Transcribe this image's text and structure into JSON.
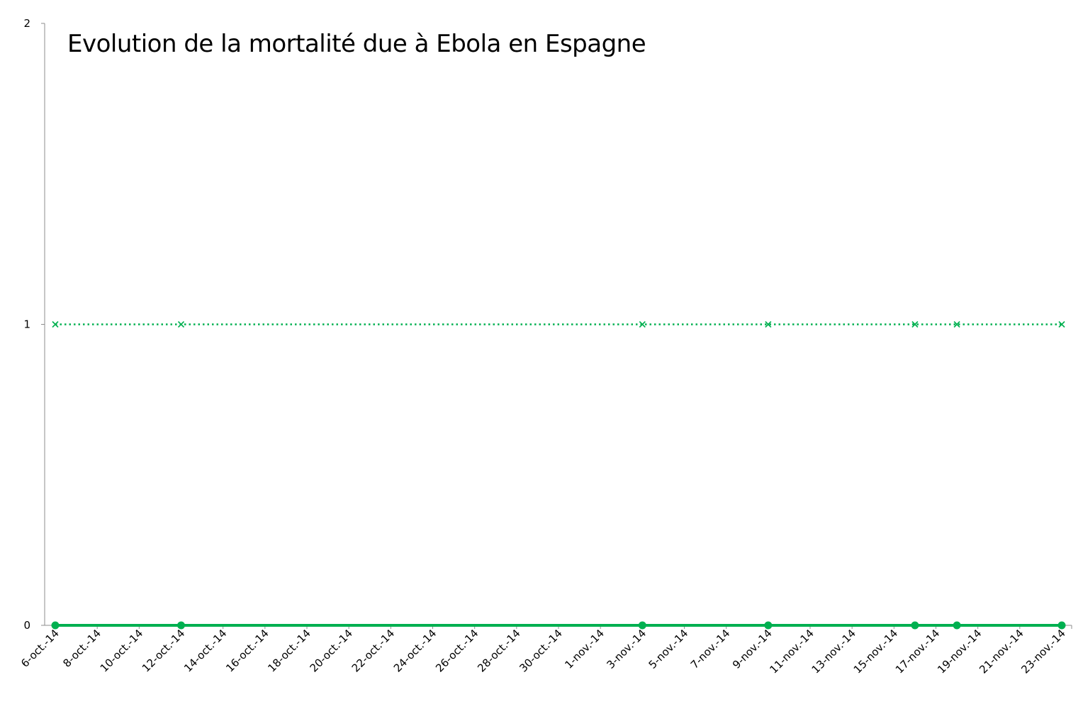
{
  "chart_data": {
    "type": "line",
    "title": "Evolution de la mortalité due à Ebola en Espagne",
    "xlabel": "",
    "ylabel": "",
    "ylim": [
      0,
      2
    ],
    "yticks": [
      "0",
      "1",
      "2"
    ],
    "x_range": [
      "6-oct.-14",
      "23-nov.-14"
    ],
    "x_tick_labels": [
      "6-oct.-14",
      "8-oct.-14",
      "10-oct.-14",
      "12-oct.-14",
      "14-oct.-14",
      "16-oct.-14",
      "18-oct.-14",
      "20-oct.-14",
      "22-oct.-14",
      "24-oct.-14",
      "26-oct.-14",
      "28-oct.-14",
      "30-oct.-14",
      "1-nov.-14",
      "3-nov.-14",
      "5-nov.-14",
      "7-nov.-14",
      "9-nov.-14",
      "11-nov.-14",
      "13-nov.-14",
      "15-nov.-14",
      "17-nov.-14",
      "19-nov.-14",
      "21-nov.-14",
      "23-nov.-14"
    ],
    "x": [
      "6-oct.-14",
      "12-oct.-14",
      "3-nov.-14",
      "9-nov.-14",
      "16-nov.-14",
      "18-nov.-14",
      "23-nov.-14"
    ],
    "series": [
      {
        "values": [
          1,
          1,
          1,
          1,
          1,
          1,
          1
        ],
        "color": "#00b050",
        "line_style": "dotted",
        "marker": "x"
      },
      {
        "values": [
          0,
          0,
          0,
          0,
          0,
          0,
          0
        ],
        "color": "#00b050",
        "line_style": "solid",
        "marker": "circle"
      }
    ],
    "grid": false,
    "legend": "none"
  }
}
